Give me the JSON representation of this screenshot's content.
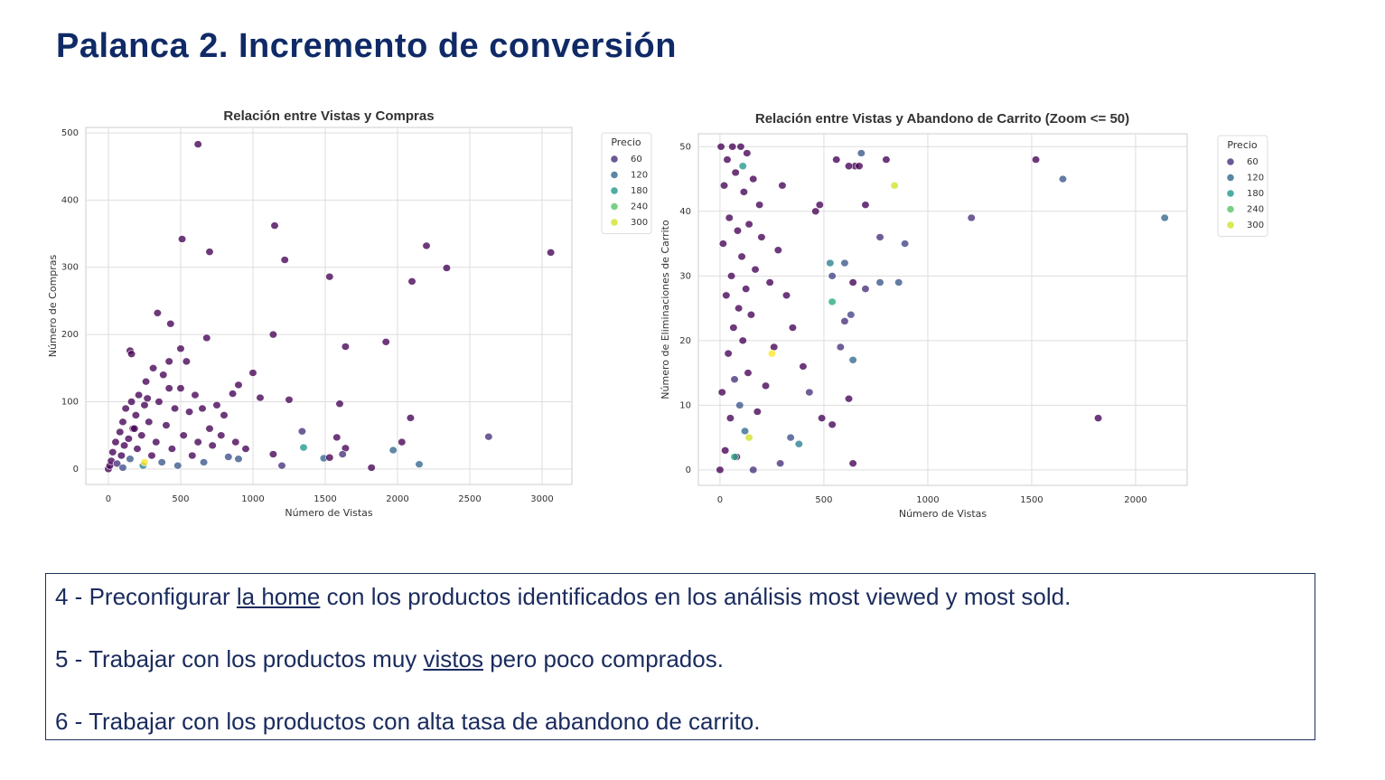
{
  "header": {
    "title": "Palanca 2. Incremento de conversión"
  },
  "chart_data": [
    {
      "type": "scatter",
      "title": "Relación entre Vistas y Compras",
      "x_label": "Número de Vistas",
      "y_label": "Número de Compras",
      "xlim": [
        -156,
        3206
      ],
      "ylim": [
        -23,
        508
      ],
      "xticks": [
        0,
        500,
        1000,
        1500,
        2000,
        2500,
        3000
      ],
      "yticks": [
        0,
        100,
        200,
        300,
        400,
        500
      ],
      "grid": true,
      "colormap": "viridis",
      "legend": {
        "title": "Precio",
        "values": [
          60,
          120,
          180,
          240,
          300
        ],
        "position": "outside right"
      },
      "x": [
        620,
        510,
        700,
        1150,
        1220,
        1530,
        2200,
        2340,
        2100,
        3060,
        340,
        430,
        680,
        1140,
        1640,
        1920,
        150,
        160,
        500,
        1600,
        1250,
        1000,
        2090,
        2630,
        1340,
        1350,
        1490,
        1530,
        1580,
        1640,
        1620,
        1820,
        1970,
        2030,
        2150,
        1200,
        1140,
        1050,
        900,
        860,
        800,
        830,
        0,
        10,
        20,
        30,
        50,
        60,
        80,
        90,
        100,
        110,
        120,
        140,
        150,
        160,
        170,
        190,
        200,
        210,
        230,
        240,
        250,
        260,
        280,
        300,
        310,
        330,
        350,
        370,
        380,
        400,
        420,
        440,
        460,
        480,
        500,
        520,
        540,
        560,
        580,
        600,
        620,
        650,
        660,
        700,
        720,
        750,
        780,
        900,
        880,
        950,
        420,
        270,
        180,
        100,
        250
      ],
      "values": [
        483,
        342,
        323,
        362,
        311,
        286,
        332,
        299,
        279,
        322,
        232,
        216,
        195,
        200,
        182,
        189,
        176,
        171,
        179,
        97,
        103,
        143,
        76,
        48,
        56,
        32,
        16,
        17,
        47,
        31,
        22,
        2,
        28,
        40,
        7,
        5,
        22,
        106,
        125,
        112,
        80,
        18,
        0,
        5,
        12,
        25,
        40,
        8,
        55,
        20,
        70,
        35,
        90,
        45,
        15,
        100,
        60,
        80,
        30,
        110,
        50,
        5,
        95,
        130,
        70,
        20,
        150,
        40,
        100,
        10,
        140,
        65,
        120,
        30,
        90,
        5,
        120,
        50,
        160,
        85,
        20,
        110,
        40,
        90,
        10,
        60,
        35,
        95,
        50,
        15,
        40,
        30,
        160,
        105,
        60,
        2,
        10
      ],
      "prices": [
        20,
        20,
        20,
        20,
        20,
        20,
        20,
        20,
        20,
        20,
        20,
        20,
        20,
        20,
        20,
        20,
        20,
        20,
        20,
        20,
        20,
        20,
        20,
        60,
        60,
        180,
        120,
        20,
        20,
        20,
        60,
        20,
        120,
        20,
        120,
        60,
        20,
        20,
        20,
        20,
        20,
        90,
        20,
        20,
        20,
        20,
        20,
        60,
        20,
        20,
        20,
        20,
        20,
        20,
        100,
        20,
        20,
        20,
        20,
        20,
        20,
        150,
        20,
        20,
        20,
        20,
        20,
        20,
        20,
        100,
        20,
        20,
        20,
        20,
        20,
        100,
        20,
        20,
        20,
        20,
        20,
        20,
        20,
        20,
        100,
        20,
        20,
        20,
        20,
        100,
        20,
        20,
        20,
        20,
        20,
        90,
        320
      ]
    },
    {
      "type": "scatter",
      "title": "Relación entre Vistas y Abandono de Carrito (Zoom <= 50)",
      "x_label": "Número de Vistas",
      "y_label": "Número de Eliminaciones de Carrito",
      "xlim": [
        -104,
        2248
      ],
      "ylim": [
        -2.4,
        52
      ],
      "xticks": [
        0,
        500,
        1000,
        1500,
        2000
      ],
      "yticks": [
        0,
        10,
        20,
        30,
        40,
        50
      ],
      "grid": true,
      "colormap": "viridis",
      "legend": {
        "title": "Precio",
        "values": [
          60,
          120,
          180,
          240,
          300
        ],
        "position": "outside right"
      },
      "x": [
        1520,
        1650,
        1210,
        2140,
        1820,
        840,
        800,
        700,
        770,
        890,
        860,
        770,
        700,
        640,
        630,
        600,
        540,
        530,
        540,
        620,
        640,
        540,
        490,
        580,
        640,
        600,
        650,
        670,
        620,
        680,
        560,
        480,
        460,
        290,
        380,
        340,
        160,
        0,
        5,
        10,
        15,
        20,
        25,
        30,
        35,
        40,
        45,
        50,
        55,
        60,
        65,
        70,
        75,
        80,
        85,
        90,
        95,
        100,
        105,
        110,
        115,
        120,
        125,
        130,
        135,
        140,
        150,
        160,
        170,
        180,
        190,
        200,
        220,
        240,
        260,
        280,
        300,
        320,
        350,
        400,
        430,
        110,
        140,
        70,
        250
      ],
      "values": [
        48,
        45,
        39,
        39,
        8,
        44,
        48,
        41,
        36,
        35,
        29,
        29,
        28,
        29,
        24,
        32,
        30,
        32,
        26,
        11,
        1,
        7,
        8,
        19,
        17,
        23,
        47,
        47,
        47,
        49,
        48,
        41,
        40,
        1,
        4,
        5,
        0,
        0,
        50,
        12,
        35,
        44,
        3,
        27,
        48,
        18,
        39,
        8,
        30,
        50,
        22,
        14,
        46,
        2,
        37,
        25,
        10,
        50,
        33,
        20,
        43,
        6,
        28,
        49,
        15,
        38,
        24,
        45,
        31,
        9,
        41,
        36,
        13,
        29,
        19,
        34,
        44,
        27,
        22,
        16,
        12,
        47,
        5,
        2,
        18
      ],
      "prices": [
        20,
        100,
        60,
        120,
        20,
        300,
        20,
        20,
        60,
        80,
        100,
        100,
        60,
        20,
        80,
        100,
        80,
        150,
        200,
        20,
        20,
        20,
        20,
        60,
        120,
        60,
        20,
        20,
        20,
        100,
        20,
        20,
        20,
        60,
        150,
        90,
        60,
        20,
        20,
        20,
        20,
        20,
        20,
        20,
        20,
        20,
        20,
        20,
        20,
        20,
        20,
        60,
        20,
        20,
        20,
        20,
        100,
        20,
        20,
        20,
        20,
        120,
        20,
        20,
        20,
        20,
        20,
        20,
        20,
        20,
        20,
        20,
        20,
        20,
        20,
        20,
        20,
        20,
        20,
        20,
        60,
        180,
        300,
        200,
        320
      ]
    }
  ],
  "notes": [
    {
      "parts": [
        {
          "text": "4 - Preconfigurar ",
          "underline": false
        },
        {
          "text": "la home",
          "underline": true
        },
        {
          "text": " con los productos identificados en los análisis most viewed y most sold.",
          "underline": false
        }
      ]
    },
    {
      "parts": [
        {
          "text": "5 - Trabajar con los productos muy ",
          "underline": false
        },
        {
          "text": "vistos",
          "underline": true
        },
        {
          "text": " pero poco comprados.",
          "underline": false
        }
      ]
    },
    {
      "parts": [
        {
          "text": "6 - Trabajar con los productos con alta tasa de abandono de carrito.",
          "underline": false
        }
      ]
    }
  ]
}
